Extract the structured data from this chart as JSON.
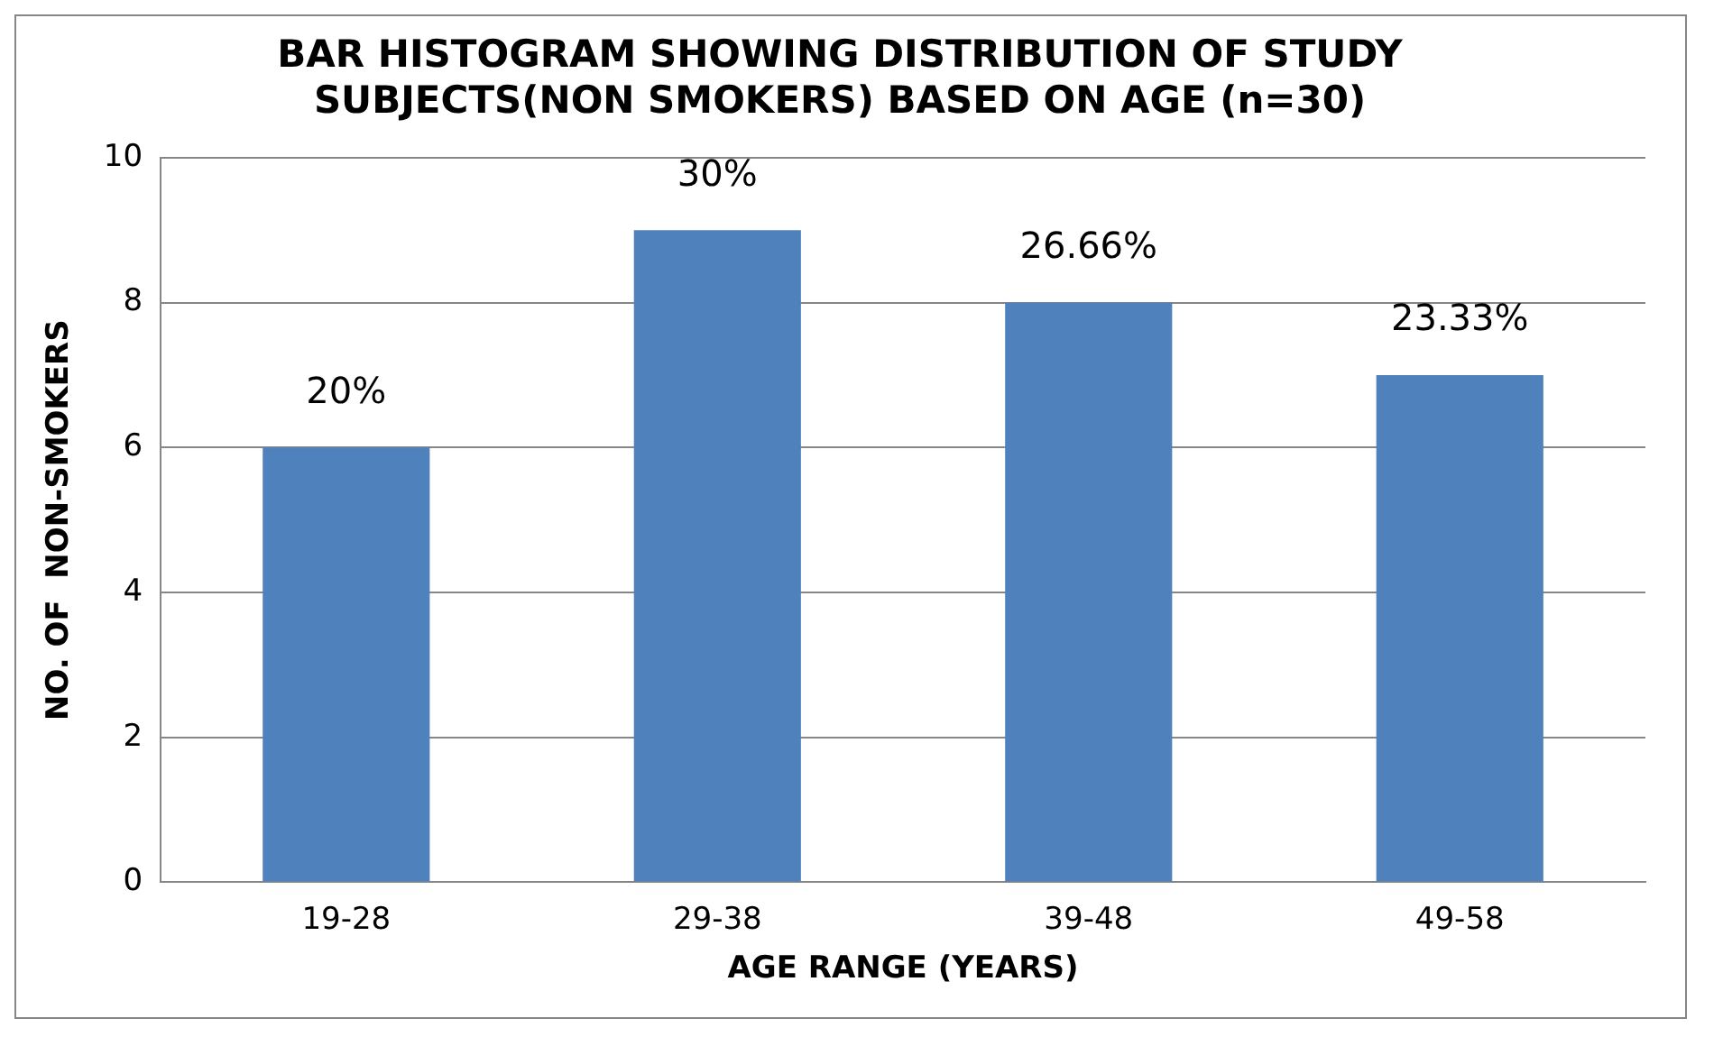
{
  "chart_data": {
    "type": "bar",
    "title": "BAR HISTOGRAM SHOWING DISTRIBUTION OF STUDY SUBJECTS(NON SMOKERS) BASED ON AGE (n=30)",
    "xlabel": "AGE RANGE (YEARS)",
    "ylabel": "NO. OF  NON-SMOKERS",
    "categories": [
      "19-28",
      "29-38",
      "39-48",
      "49-58"
    ],
    "values": [
      6,
      9,
      8,
      7
    ],
    "annotations": [
      {
        "text": "20%",
        "x": "19-28",
        "y": 6
      },
      {
        "text": "30%",
        "x": "29-38",
        "y": 9
      },
      {
        "text": "26.66%",
        "x": "39-48",
        "y": 8
      },
      {
        "text": "23.33%",
        "x": "49-58",
        "y": 7
      }
    ],
    "color": "#4f81bd",
    "ylim": [
      0,
      10
    ],
    "yticks": [
      0,
      2,
      4,
      6,
      8,
      10
    ],
    "grid": "y"
  }
}
